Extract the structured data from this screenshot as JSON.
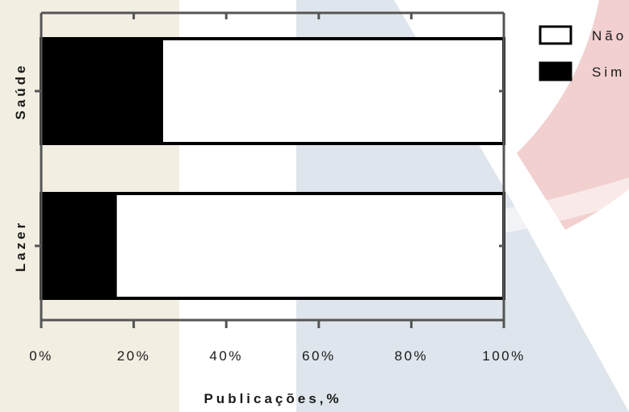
{
  "colors": {
    "bg_beige": "#f3eee2",
    "bg_blue": "#dfe5ec",
    "bg_pink": "#f1d0cf",
    "bar_fill_black": "#000000",
    "bar_fill_white": "#ffffff",
    "bar_outline": "#000000",
    "axis": "#555555"
  },
  "chart_data": {
    "type": "bar",
    "orientation": "horizontal",
    "stacked": true,
    "categories": [
      "Saúde",
      "Lazer"
    ],
    "series": [
      {
        "name": "Sim",
        "color": "#000000",
        "values": [
          26,
          16
        ]
      },
      {
        "name": "Não",
        "color": "#ffffff",
        "values": [
          74,
          84
        ]
      }
    ],
    "xlabel": "Publicações,%",
    "ylabel": "",
    "xlim": [
      0,
      100
    ],
    "xticks": [
      0,
      20,
      40,
      60,
      80,
      100
    ],
    "xtick_labels": [
      "0%",
      "20%",
      "40%",
      "60%",
      "80%",
      "100%"
    ],
    "legend": {
      "placement": "top-right",
      "entries": [
        "Não",
        "Sim"
      ]
    },
    "grid": false
  }
}
